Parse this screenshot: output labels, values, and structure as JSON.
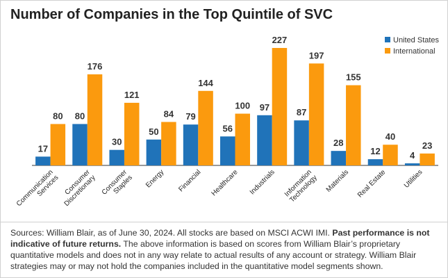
{
  "chart_data": {
    "type": "bar",
    "title": "Number of Companies in the Top Quintile of SVC",
    "categories": [
      "Communication\nServices",
      "Consumer\nDiscretionary",
      "Consumer\nStaples",
      "Energy",
      "Financial",
      "Healthcare",
      "Industrials",
      "Information\nTechnology",
      "Materials",
      "Real Estate",
      "Utilities"
    ],
    "series": [
      {
        "name": "United States",
        "color": "#2073b9",
        "values": [
          17,
          80,
          30,
          50,
          79,
          56,
          97,
          87,
          28,
          12,
          4
        ]
      },
      {
        "name": "International",
        "color": "#fb9a0e",
        "values": [
          80,
          176,
          121,
          84,
          144,
          100,
          227,
          197,
          155,
          40,
          23
        ]
      }
    ],
    "legend": "top-right"
  },
  "footnote": [
    "Sources: William Blair, as of June 30, 2024. All stocks are based on MSCI ACWI IMI.",
    "Past performance is not indicative of future returns.",
    "The above information is based on scores from William Blair’s proprietary quantitative models and does not in any way relate to actual results of any account or strategy. William Blair strategies may or may not hold the companies included in the quantitative model segments shown."
  ]
}
